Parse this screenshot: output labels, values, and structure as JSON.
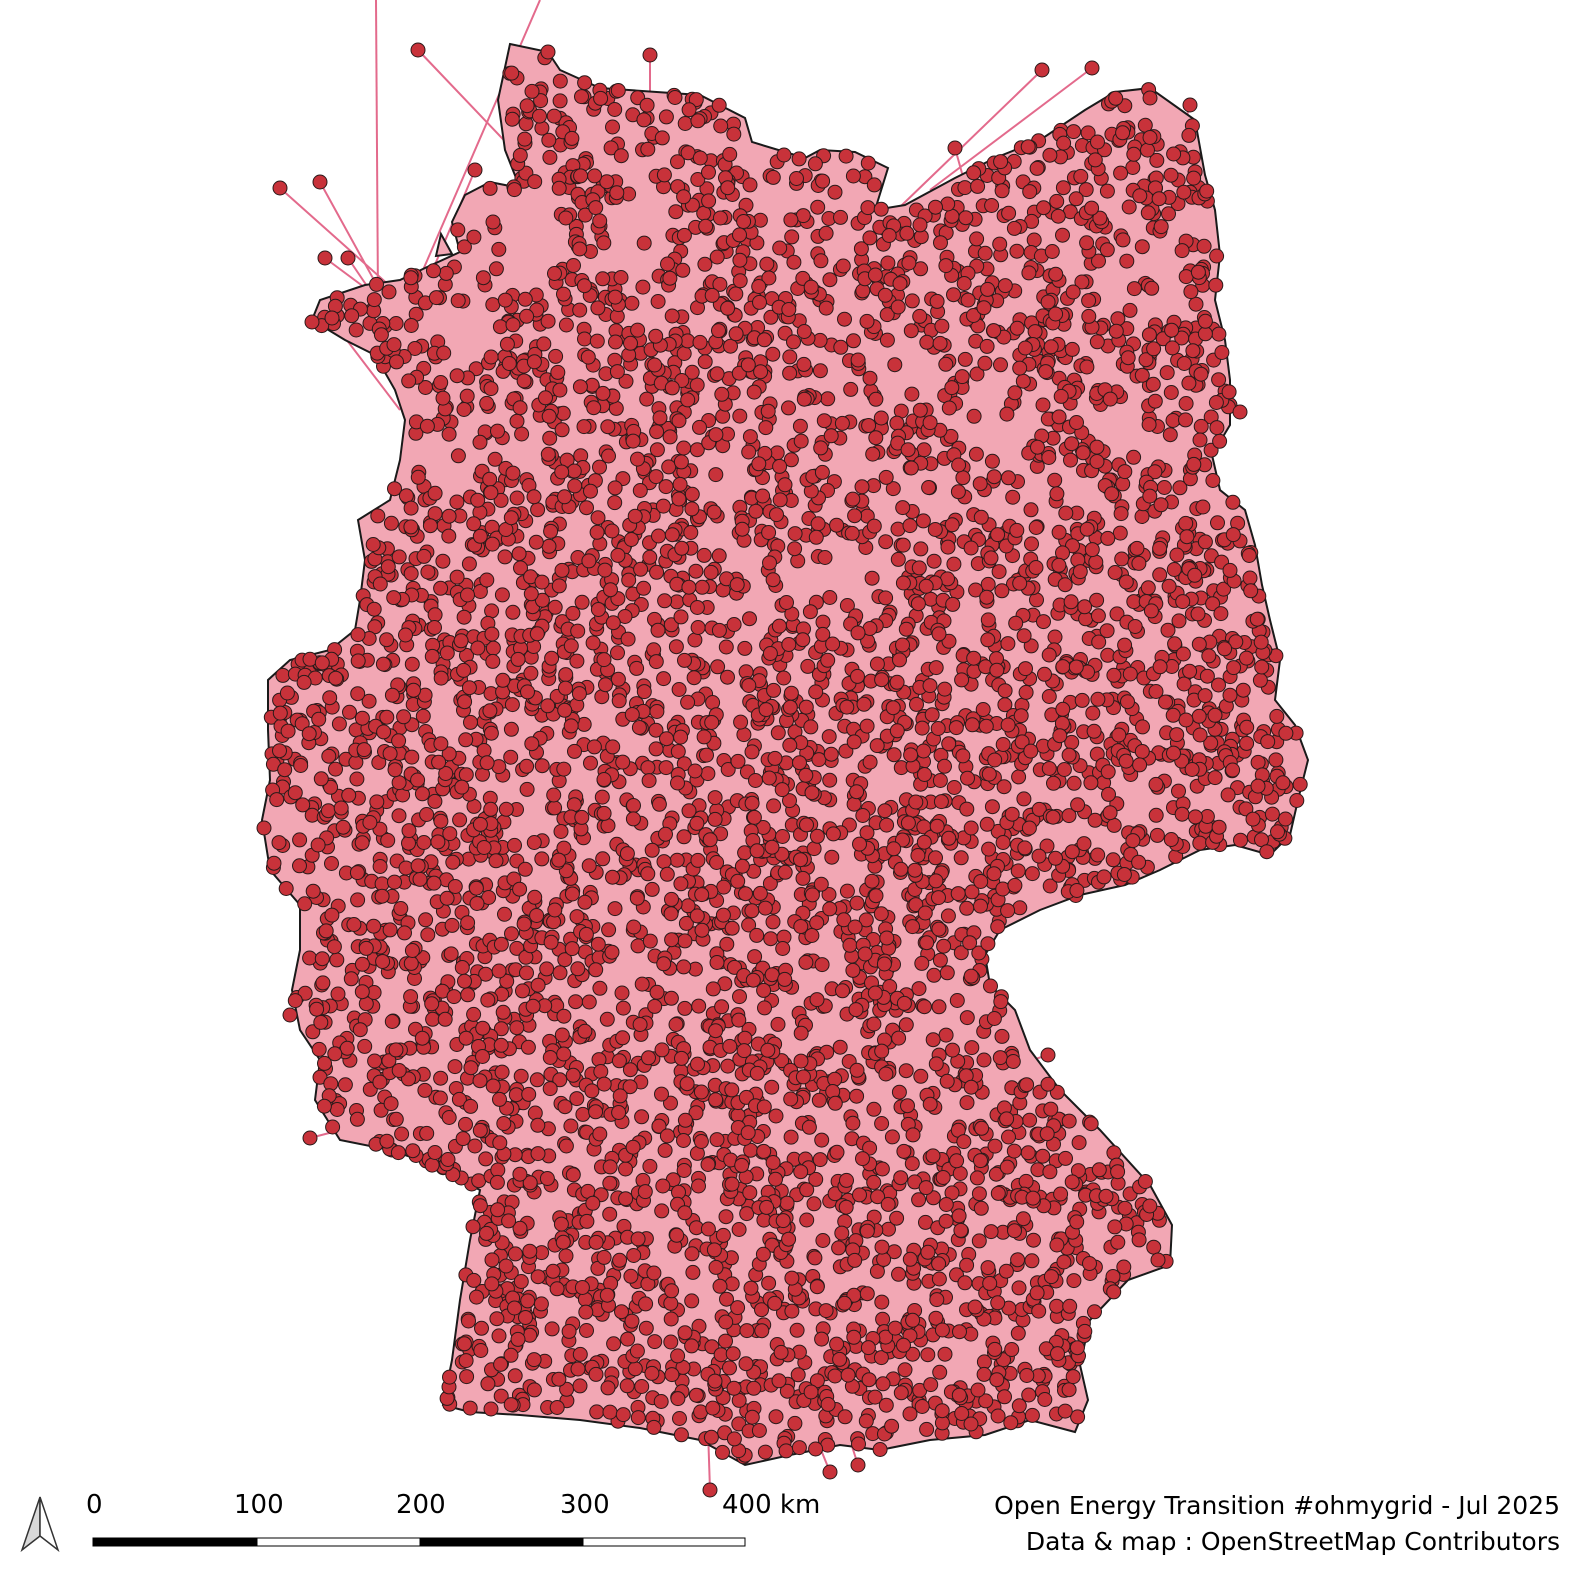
{
  "map": {
    "country_fill": "#f2a7b4",
    "country_stroke": "#1a1a1a",
    "marker_fill": "#c8323a",
    "marker_stroke": "#2a1a1a",
    "connector_color": "#e36a8c"
  },
  "scale_bar": {
    "labels": [
      "0",
      "100",
      "200",
      "300",
      "400 km"
    ]
  },
  "credits": {
    "line1": "Open Energy Transition #ohmygrid - Jul 2025",
    "line2": "Data & map : OpenStreetMap Contributors"
  },
  "icons": {
    "north_arrow": "north-arrow-icon"
  }
}
